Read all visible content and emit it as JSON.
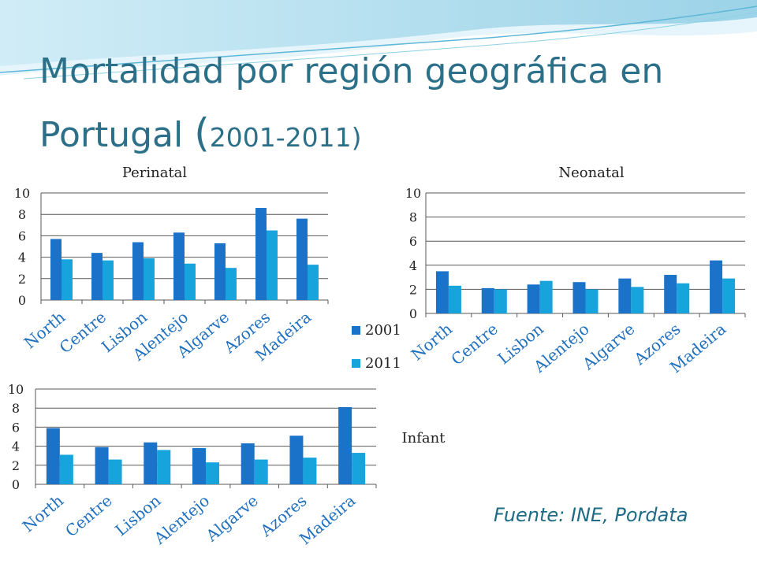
{
  "slide": {
    "title_main": "Mortalidad por región geográfica en Portugal",
    "title_paren_open": "(",
    "title_years": "2001-2011",
    "title_paren_close": ")",
    "source": "Fuente: INE, Pordata"
  },
  "colors": {
    "title": "#2b6f88",
    "series_2001": "#1a73c9",
    "series_2011": "#17a3dc",
    "grid": "#595959"
  },
  "legend": {
    "items": [
      "2001",
      "2011"
    ]
  },
  "chart_data": [
    {
      "type": "bar",
      "title": "Perinatal",
      "categories": [
        "North",
        "Centre",
        "Lisbon",
        "Alentejo",
        "Algarve",
        "Azores",
        "Madeira"
      ],
      "series": [
        {
          "name": "2001",
          "values": [
            5.7,
            4.4,
            5.4,
            6.3,
            5.3,
            8.6,
            7.6
          ]
        },
        {
          "name": "2011",
          "values": [
            3.8,
            3.7,
            3.9,
            3.4,
            3.0,
            6.5,
            3.3
          ]
        }
      ],
      "ylim": [
        0,
        10
      ],
      "yticks": [
        "0",
        "2",
        "4",
        "6",
        "8",
        "10"
      ],
      "grid": true
    },
    {
      "type": "bar",
      "title": "Neonatal",
      "categories": [
        "North",
        "Centre",
        "Lisbon",
        "Alentejo",
        "Algarve",
        "Azores",
        "Madeira"
      ],
      "series": [
        {
          "name": "2001",
          "values": [
            3.5,
            2.1,
            2.4,
            2.6,
            2.9,
            3.2,
            4.4
          ]
        },
        {
          "name": "2011",
          "values": [
            2.3,
            2.0,
            2.7,
            2.0,
            2.2,
            2.5,
            2.9
          ]
        }
      ],
      "ylim": [
        0,
        10
      ],
      "yticks": [
        "0",
        "2",
        "4",
        "6",
        "8",
        "10"
      ],
      "grid": true
    },
    {
      "type": "bar",
      "title": "Infant",
      "categories": [
        "North",
        "Centre",
        "Lisbon",
        "Alentejo",
        "Algarve",
        "Azores",
        "Madeira"
      ],
      "series": [
        {
          "name": "2001",
          "values": [
            5.9,
            3.9,
            4.4,
            3.8,
            4.3,
            5.1,
            8.1
          ]
        },
        {
          "name": "2011",
          "values": [
            3.1,
            2.6,
            3.6,
            2.3,
            2.6,
            2.8,
            3.3
          ]
        }
      ],
      "ylim": [
        0,
        10
      ],
      "yticks": [
        "0",
        "2",
        "4",
        "6",
        "8",
        "10"
      ],
      "grid": true
    }
  ]
}
